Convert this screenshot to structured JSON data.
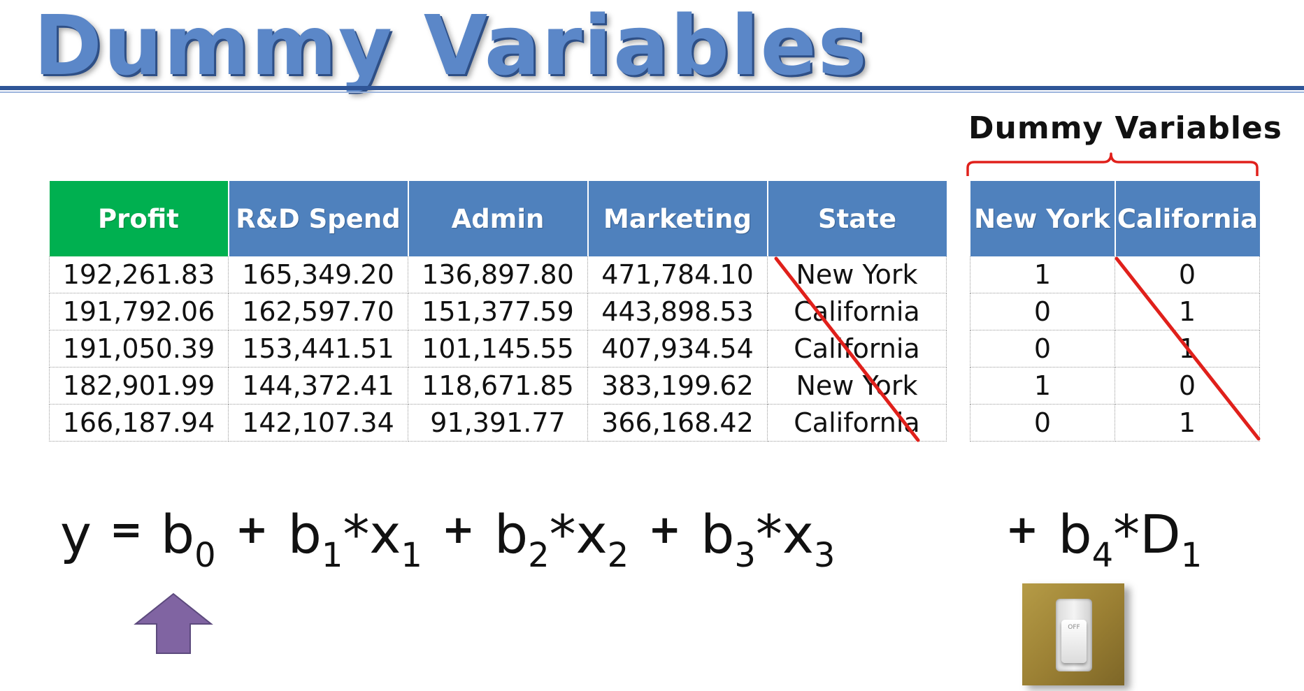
{
  "title": "Dummy Variables",
  "dummy_heading": "Dummy Variables",
  "main_table": {
    "headers": [
      "Profit",
      "R&D Spend",
      "Admin",
      "Marketing",
      "State"
    ],
    "rows": [
      [
        "192,261.83",
        "165,349.20",
        "136,897.80",
        "471,784.10",
        "New York"
      ],
      [
        "191,792.06",
        "162,597.70",
        "151,377.59",
        "443,898.53",
        "California"
      ],
      [
        "191,050.39",
        "153,441.51",
        "101,145.55",
        "407,934.54",
        "California"
      ],
      [
        "182,901.99",
        "144,372.41",
        "118,671.85",
        "383,199.62",
        "New York"
      ],
      [
        "166,187.94",
        "142,107.34",
        "91,391.77",
        "366,168.42",
        "California"
      ]
    ]
  },
  "dummy_table": {
    "headers": [
      "New York",
      "California"
    ],
    "rows": [
      [
        "1",
        "0"
      ],
      [
        "0",
        "1"
      ],
      [
        "0",
        "1"
      ],
      [
        "1",
        "0"
      ],
      [
        "0",
        "1"
      ]
    ]
  },
  "equation": {
    "y": "y",
    "equals": "=",
    "plus": "+",
    "star": "*",
    "b": "b",
    "x": "x",
    "D": "D",
    "sub0": "0",
    "sub1": "1",
    "sub2": "2",
    "sub3": "3",
    "sub4": "4"
  },
  "switch_label": "OFF",
  "colors": {
    "title": "#5b87c8",
    "header_blue": "#4f81bd",
    "header_green": "#00b050",
    "strike_red": "#e0201b",
    "arrow_purple": "#8064a2"
  }
}
